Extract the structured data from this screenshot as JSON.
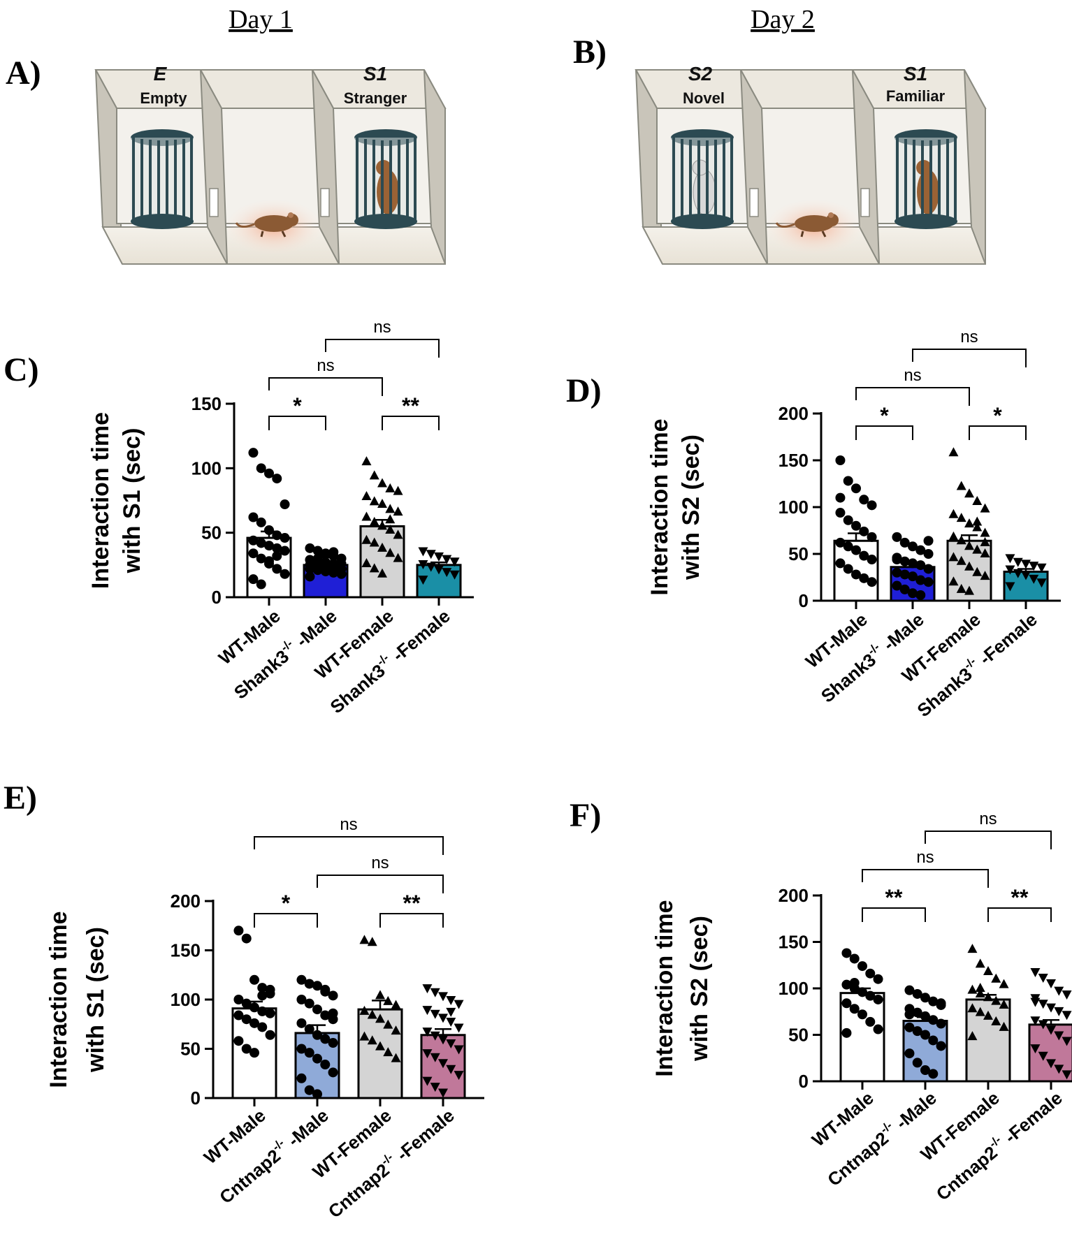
{
  "schematic": {
    "day1": {
      "title": "Day 1",
      "letter": "A)",
      "left_id": "E",
      "left_label": "Empty",
      "right_id": "S1",
      "right_label": "Stranger"
    },
    "day2": {
      "title": "Day 2",
      "letter": "B)",
      "left_id": "S2",
      "left_label": "Novel",
      "right_id": "S1",
      "right_label": "Familiar"
    }
  },
  "chart_data": [
    {
      "id": "C",
      "letter": "C)",
      "type": "bar",
      "ylabel_line1": "Interaction time",
      "ylabel_line2": "with S1 (sec)",
      "ylim": [
        0,
        150
      ],
      "yticks": [
        0,
        50,
        100,
        150
      ],
      "categories": [
        {
          "base": "WT-Male",
          "sup": "",
          "suffix": ""
        },
        {
          "base": "Shank3",
          "sup": "-/-",
          "suffix": " -Male"
        },
        {
          "base": "WT-Female",
          "sup": "",
          "suffix": ""
        },
        {
          "base": "Shank3",
          "sup": "-/-",
          "suffix": " -Female"
        }
      ],
      "values": [
        46,
        25,
        55,
        25
      ],
      "errors": [
        5,
        2,
        5,
        2
      ],
      "colors": [
        "#ffffff",
        "#1f1fd6",
        "#d4d4d4",
        "#1a8fa6"
      ],
      "markers": [
        "circle",
        "circle",
        "triangle-up",
        "triangle-down"
      ],
      "points": [
        [
          112,
          100,
          96,
          92,
          72,
          62,
          58,
          52,
          48,
          46,
          44,
          42,
          40,
          38,
          36,
          34,
          30,
          26,
          22,
          18,
          14,
          10,
          28,
          32
        ],
        [
          38,
          36,
          34,
          32,
          30,
          29,
          28,
          27,
          26,
          26,
          25,
          24,
          24,
          23,
          22,
          22,
          21,
          20,
          19,
          18,
          16,
          30,
          33,
          35
        ],
        [
          105,
          94,
          88,
          84,
          82,
          78,
          74,
          72,
          68,
          66,
          62,
          58,
          55,
          52,
          48,
          44,
          42,
          38,
          34,
          30,
          26,
          22,
          18,
          60
        ],
        [
          36,
          34,
          32,
          30,
          28,
          26,
          24,
          22,
          20,
          18,
          14
        ]
      ],
      "comparisons": [
        {
          "from": 0,
          "to": 2,
          "label": "ns",
          "level": 2
        },
        {
          "from": 1,
          "to": 3,
          "label": "ns",
          "level": 3
        },
        {
          "from": 0,
          "to": 1,
          "label": "*",
          "level": 1
        },
        {
          "from": 2,
          "to": 3,
          "label": "**",
          "level": 1
        }
      ]
    },
    {
      "id": "D",
      "letter": "D)",
      "type": "bar",
      "ylabel_line1": "Interaction time",
      "ylabel_line2": "with S2 (sec)",
      "ylim": [
        0,
        200
      ],
      "yticks": [
        0,
        50,
        100,
        150,
        200
      ],
      "categories": [
        {
          "base": "WT-Male",
          "sup": "",
          "suffix": ""
        },
        {
          "base": "Shank3",
          "sup": "-/-",
          "suffix": " -Male"
        },
        {
          "base": "WT-Female",
          "sup": "",
          "suffix": ""
        },
        {
          "base": "Shank3",
          "sup": "-/-",
          "suffix": " -Female"
        }
      ],
      "values": [
        64,
        36,
        64,
        31
      ],
      "errors": [
        8,
        5,
        6,
        3
      ],
      "colors": [
        "#ffffff",
        "#1f1fd6",
        "#d4d4d4",
        "#1a8fa6"
      ],
      "markers": [
        "circle",
        "circle",
        "triangle-up",
        "triangle-down"
      ],
      "points": [
        [
          150,
          128,
          120,
          108,
          102,
          94,
          86,
          80,
          74,
          68,
          62,
          58,
          54,
          48,
          44,
          40,
          34,
          28,
          24,
          20,
          110
        ],
        [
          68,
          62,
          58,
          54,
          50,
          46,
          42,
          40,
          38,
          34,
          30,
          28,
          26,
          22,
          20,
          16,
          12,
          8,
          6,
          64,
          44
        ],
        [
          158,
          122,
          114,
          106,
          98,
          92,
          88,
          82,
          78,
          72,
          68,
          64,
          58,
          54,
          50,
          46,
          42,
          36,
          30,
          26,
          20,
          12,
          10,
          84,
          62
        ],
        [
          46,
          42,
          40,
          38,
          36,
          34,
          30,
          28,
          24,
          20,
          16
        ]
      ],
      "comparisons": [
        {
          "from": 0,
          "to": 2,
          "label": "ns",
          "level": 2
        },
        {
          "from": 1,
          "to": 3,
          "label": "ns",
          "level": 3
        },
        {
          "from": 0,
          "to": 1,
          "label": "*",
          "level": 1
        },
        {
          "from": 2,
          "to": 3,
          "label": "*",
          "level": 1
        }
      ]
    },
    {
      "id": "E",
      "letter": "E)",
      "type": "bar",
      "ylabel_line1": "Interaction time",
      "ylabel_line2": "with S1 (sec)",
      "ylim": [
        0,
        200
      ],
      "yticks": [
        0,
        50,
        100,
        150,
        200
      ],
      "categories": [
        {
          "base": "WT-Male",
          "sup": "",
          "suffix": ""
        },
        {
          "base": "Cntnap2",
          "sup": "-/-",
          "suffix": " -Male"
        },
        {
          "base": "WT-Female",
          "sup": "",
          "suffix": ""
        },
        {
          "base": "Cntnap2",
          "sup": "-/-",
          "suffix": " -Female"
        }
      ],
      "values": [
        91,
        66,
        90,
        64
      ],
      "errors": [
        7,
        8,
        9,
        6
      ],
      "colors": [
        "#ffffff",
        "#8faad8",
        "#d4d4d4",
        "#c0789a"
      ],
      "markers": [
        "circle",
        "circle",
        "triangle-up",
        "triangle-down"
      ],
      "points": [
        [
          170,
          162,
          120,
          112,
          106,
          100,
          96,
          92,
          88,
          86,
          84,
          80,
          76,
          72,
          64,
          58,
          50,
          46,
          104,
          110
        ],
        [
          120,
          116,
          114,
          110,
          104,
          100,
          96,
          90,
          84,
          80,
          76,
          70,
          64,
          60,
          56,
          50,
          46,
          40,
          34,
          26,
          20,
          8,
          4,
          108,
          86
        ],
        [
          160,
          158,
          104,
          98,
          94,
          88,
          84,
          80,
          74,
          68,
          62,
          58,
          52,
          46,
          40
        ],
        [
          112,
          108,
          104,
          100,
          96,
          90,
          86,
          82,
          78,
          72,
          68,
          64,
          60,
          56,
          50,
          46,
          42,
          36,
          30,
          24,
          18,
          12,
          6,
          88
        ]
      ],
      "comparisons": [
        {
          "from": 0,
          "to": 3,
          "label": "ns",
          "level": 3
        },
        {
          "from": 1,
          "to": 3,
          "label": "ns",
          "level": 2
        },
        {
          "from": 0,
          "to": 1,
          "label": "*",
          "level": 1
        },
        {
          "from": 2,
          "to": 3,
          "label": "**",
          "level": 1
        }
      ]
    },
    {
      "id": "F",
      "letter": "F)",
      "type": "bar",
      "ylabel_line1": "Interaction time",
      "ylabel_line2": "with S2 (sec)",
      "ylim": [
        0,
        200
      ],
      "yticks": [
        0,
        50,
        100,
        150,
        200
      ],
      "categories": [
        {
          "base": "WT-Male",
          "sup": "",
          "suffix": ""
        },
        {
          "base": "Cntnap2",
          "sup": "-/-",
          "suffix": " -Male"
        },
        {
          "base": "WT-Female",
          "sup": "",
          "suffix": ""
        },
        {
          "base": "Cntnap2",
          "sup": "-/-",
          "suffix": " -Female"
        }
      ],
      "values": [
        95,
        65,
        88,
        61
      ],
      "errors": [
        5,
        4,
        5,
        5
      ],
      "colors": [
        "#ffffff",
        "#8faad8",
        "#d4d4d4",
        "#c0789a"
      ],
      "markers": [
        "circle",
        "circle",
        "triangle-up",
        "triangle-down"
      ],
      "points": [
        [
          138,
          132,
          124,
          116,
          110,
          104,
          100,
          96,
          92,
          88,
          84,
          78,
          72,
          64,
          56,
          52,
          106
        ],
        [
          98,
          94,
          90,
          86,
          82,
          78,
          74,
          70,
          66,
          62,
          58,
          54,
          50,
          44,
          38,
          30,
          20,
          12,
          8,
          84,
          72
        ],
        [
          142,
          126,
          118,
          110,
          104,
          98,
          94,
          90,
          86,
          82,
          78,
          74,
          70,
          64,
          58,
          48,
          100
        ],
        [
          118,
          112,
          106,
          98,
          94,
          90,
          84,
          80,
          76,
          72,
          66,
          62,
          56,
          50,
          44,
          36,
          28,
          20,
          14,
          8,
          86
        ]
      ],
      "comparisons": [
        {
          "from": 0,
          "to": 2,
          "label": "ns",
          "level": 2
        },
        {
          "from": 1,
          "to": 3,
          "label": "ns",
          "level": 3
        },
        {
          "from": 0,
          "to": 1,
          "label": "**",
          "level": 1
        },
        {
          "from": 2,
          "to": 3,
          "label": "**",
          "level": 1
        }
      ]
    }
  ]
}
